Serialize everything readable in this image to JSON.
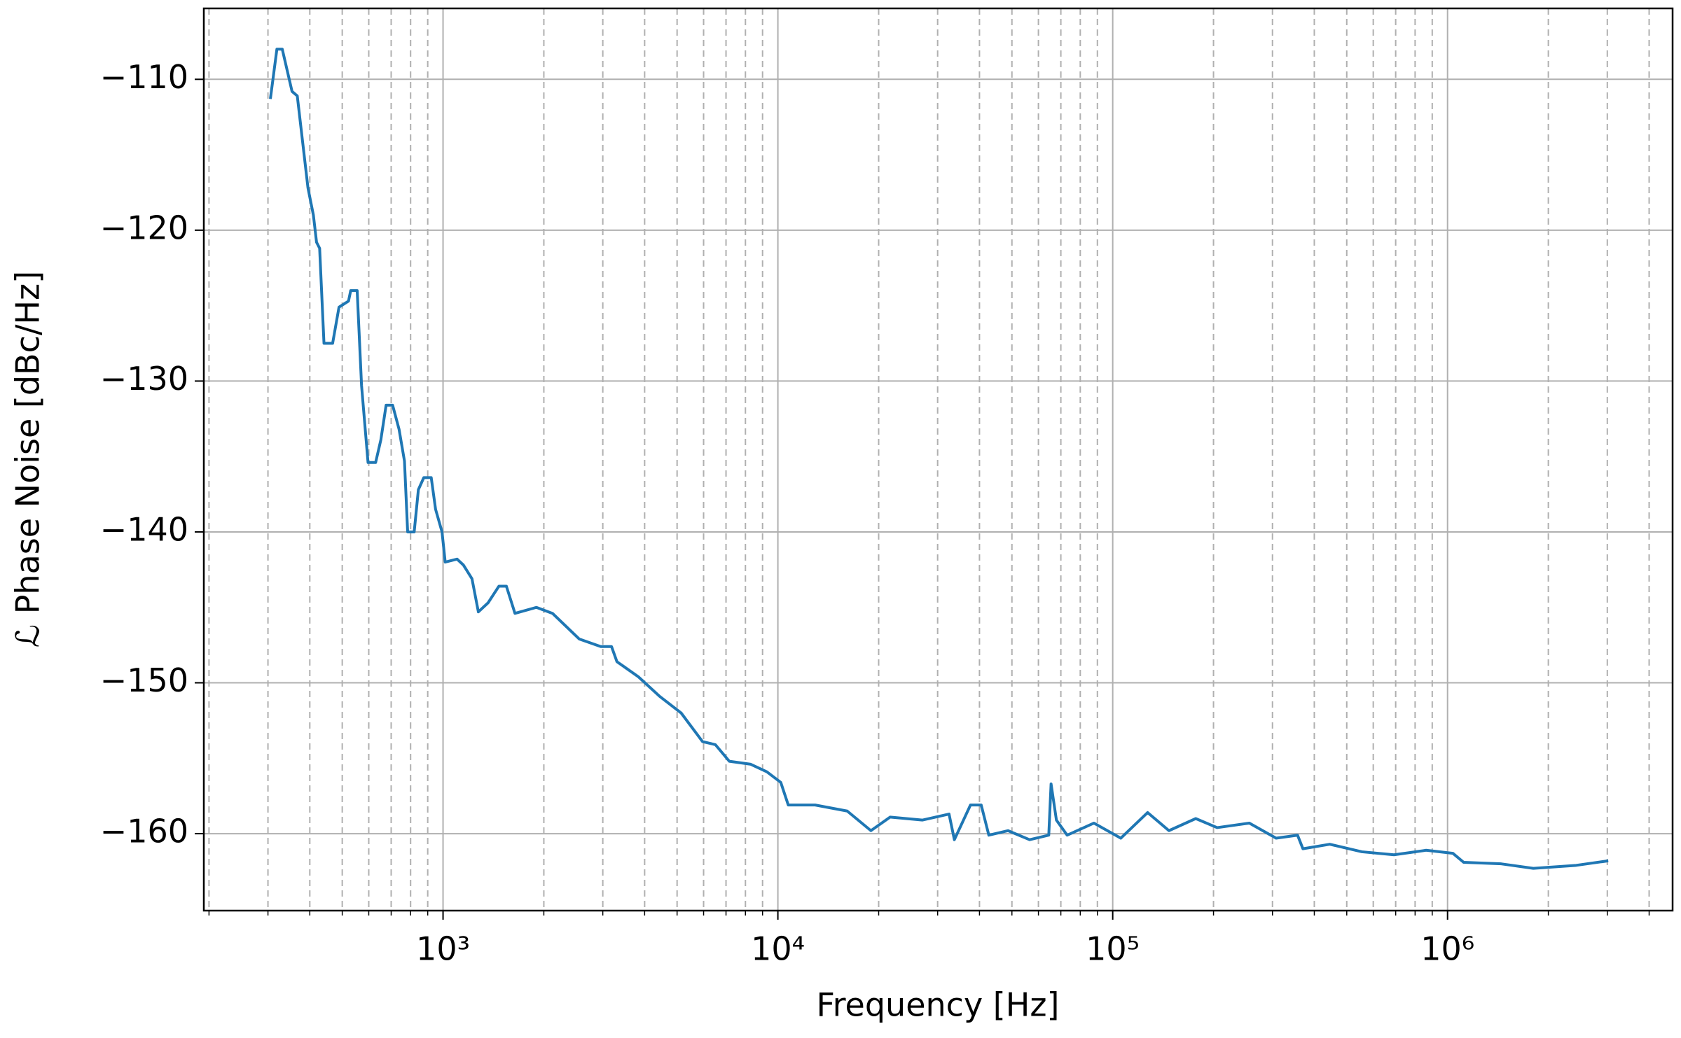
{
  "chart_data": {
    "type": "line",
    "x_label": "Frequency [Hz]",
    "y_label": "ℒ Phase Noise [dBc/Hz]",
    "xscale": "log",
    "xlim": [
      193,
      4700000
    ],
    "ylim": [
      -165.1,
      -105.3
    ],
    "xticks": [
      {
        "value": 1000,
        "label": "10³"
      },
      {
        "value": 10000,
        "label": "10⁴"
      },
      {
        "value": 100000,
        "label": "10⁵"
      },
      {
        "value": 1000000,
        "label": "10⁶"
      }
    ],
    "xminorticks": [
      200,
      300,
      400,
      500,
      600,
      700,
      800,
      900,
      2000,
      3000,
      4000,
      5000,
      6000,
      7000,
      8000,
      9000,
      20000,
      30000,
      40000,
      50000,
      60000,
      70000,
      80000,
      90000,
      200000,
      300000,
      400000,
      500000,
      600000,
      700000,
      800000,
      900000,
      2000000,
      3000000,
      4000000
    ],
    "yticks": [
      {
        "value": -110,
        "label": "−110"
      },
      {
        "value": -120,
        "label": "−120"
      },
      {
        "value": -130,
        "label": "−130"
      },
      {
        "value": -140,
        "label": "−140"
      },
      {
        "value": -150,
        "label": "−150"
      },
      {
        "value": -160,
        "label": "−160"
      }
    ],
    "grid": true,
    "x": [
      305,
      319,
      331,
      354,
      367,
      395,
      410,
      419,
      428,
      441,
      468,
      489,
      522,
      530,
      554,
      571,
      597,
      629,
      652,
      676,
      707,
      739,
      767,
      784,
      820,
      844,
      876,
      922,
      950,
      993,
      1015,
      1101,
      1151,
      1220,
      1275,
      1363,
      1468,
      1546,
      1640,
      1900,
      2123,
      2553,
      2958,
      3186,
      3306,
      3830,
      4437,
      5141,
      5957,
      6506,
      7160,
      8296,
      9270,
      10200,
      10740,
      12920,
      16110,
      18960,
      21640,
      26990,
      32450,
      33660,
      37600,
      40480,
      42660,
      48660,
      56460,
      64420,
      65450,
      67900,
      73110,
      87900,
      105700,
      127100,
      147200,
      177000,
      205100,
      255900,
      307600,
      356500,
      369900,
      444800,
      554600,
      691800,
      863000,
      1037000,
      1117000,
      1446000,
      1804000,
      2422000,
      3020000
    ],
    "series": [
      {
        "color": "#1f77b4",
        "values": [
          -111.3,
          -108.0,
          -108.0,
          -110.8,
          -111.1,
          -117.2,
          -119.0,
          -120.8,
          -121.2,
          -127.5,
          -127.5,
          -125.1,
          -124.7,
          -124.0,
          -124.0,
          -130.3,
          -135.4,
          -135.4,
          -133.9,
          -131.6,
          -131.6,
          -133.2,
          -135.3,
          -140.0,
          -140.0,
          -137.2,
          -136.4,
          -136.4,
          -138.5,
          -140.0,
          -142.0,
          -141.8,
          -142.2,
          -143.1,
          -145.3,
          -144.7,
          -143.6,
          -143.6,
          -145.4,
          -145.0,
          -145.4,
          -147.1,
          -147.6,
          -147.6,
          -148.6,
          -149.6,
          -150.9,
          -152.0,
          -153.9,
          -154.1,
          -155.2,
          -155.4,
          -155.9,
          -156.6,
          -158.1,
          -158.1,
          -158.5,
          -159.8,
          -158.9,
          -159.1,
          -158.7,
          -160.4,
          -158.1,
          -158.1,
          -160.1,
          -159.8,
          -160.4,
          -160.1,
          -156.7,
          -159.1,
          -160.1,
          -159.3,
          -160.3,
          -158.6,
          -159.8,
          -159.0,
          -159.6,
          -159.3,
          -160.3,
          -160.1,
          -161.0,
          -160.7,
          -161.2,
          -161.4,
          -161.1,
          -161.3,
          -161.9,
          -162.0,
          -162.3,
          -162.1,
          -161.8
        ]
      }
    ]
  }
}
